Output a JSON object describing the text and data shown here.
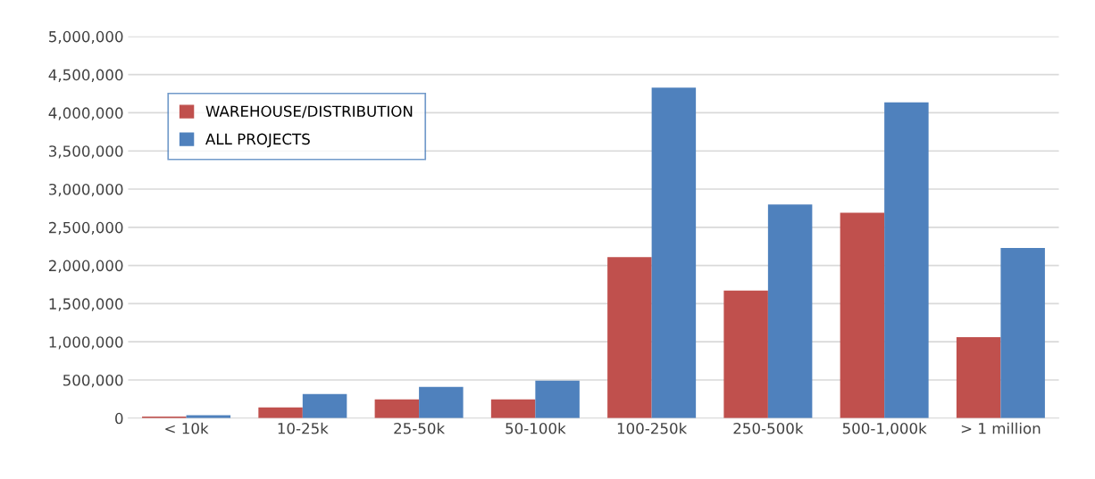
{
  "chart_data": {
    "type": "bar",
    "categories": [
      "< 10k",
      "10-25k",
      "25-50k",
      "50-100k",
      "100-250k",
      "250-500k",
      "500-1,000k",
      "> 1 million"
    ],
    "series": [
      {
        "name": "WAREHOUSE/DISTRIBUTION",
        "color": "#c0504d",
        "values": [
          20000,
          140000,
          245000,
          245000,
          2110000,
          1670000,
          2690000,
          1060000
        ]
      },
      {
        "name": "ALL PROJECTS",
        "color": "#4f81bd",
        "values": [
          40000,
          315000,
          410000,
          490000,
          4330000,
          2800000,
          4135000,
          2230000
        ]
      }
    ],
    "ylim": [
      0,
      5000000
    ],
    "yticks": [
      {
        "value": 0,
        "label": "0"
      },
      {
        "value": 500000,
        "label": "500,000"
      },
      {
        "value": 1000000,
        "label": "1,000,000"
      },
      {
        "value": 1500000,
        "label": "1,500,000"
      },
      {
        "value": 2000000,
        "label": "2,000,000"
      },
      {
        "value": 2500000,
        "label": "2,500,000"
      },
      {
        "value": 3000000,
        "label": "3,000,000"
      },
      {
        "value": 3500000,
        "label": "3,500,000"
      },
      {
        "value": 4000000,
        "label": "4,000,000"
      },
      {
        "value": 4500000,
        "label": "4,500,000"
      },
      {
        "value": 5000000,
        "label": "5,000,000"
      }
    ],
    "grid": "y",
    "legend": "top left"
  }
}
